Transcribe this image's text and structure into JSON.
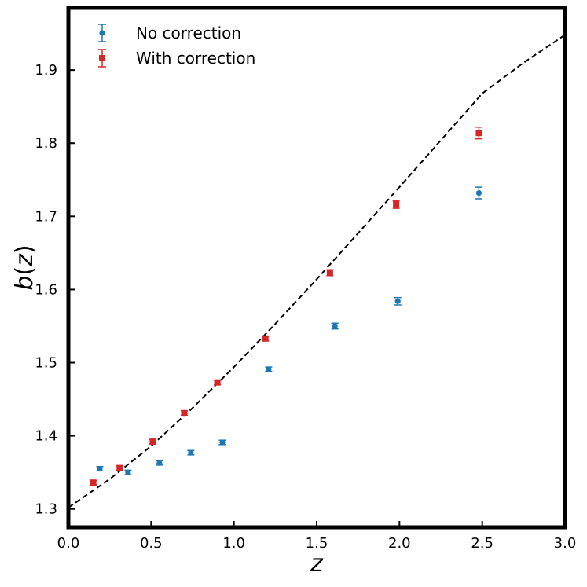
{
  "chart_data": {
    "type": "scatter",
    "title": "",
    "xlabel": "z",
    "ylabel_parts": [
      "b(",
      "z",
      ")"
    ],
    "xlim": [
      0.0,
      3.0
    ],
    "ylim": [
      1.275,
      1.985
    ],
    "xticks": [
      0.0,
      0.5,
      1.0,
      1.5,
      2.0,
      2.5,
      3.0
    ],
    "xtick_labels": [
      "0.0",
      "0.5",
      "1.0",
      "1.5",
      "2.0",
      "2.5",
      "3.0"
    ],
    "yticks": [
      1.3,
      1.4,
      1.5,
      1.6,
      1.7,
      1.8,
      1.9
    ],
    "ytick_labels": [
      "1.3",
      "1.4",
      "1.5",
      "1.6",
      "1.7",
      "1.8",
      "1.9"
    ],
    "grid": false,
    "legend_position": "top-left",
    "series": [
      {
        "name": "No correction",
        "marker": "circle",
        "color": "#1f77b4",
        "points": [
          {
            "x": 0.19,
            "y": 1.355,
            "err": 0.003
          },
          {
            "x": 0.36,
            "y": 1.35,
            "err": 0.003
          },
          {
            "x": 0.55,
            "y": 1.363,
            "err": 0.003
          },
          {
            "x": 0.74,
            "y": 1.377,
            "err": 0.003
          },
          {
            "x": 0.93,
            "y": 1.391,
            "err": 0.003
          },
          {
            "x": 1.21,
            "y": 1.491,
            "err": 0.003
          },
          {
            "x": 1.61,
            "y": 1.55,
            "err": 0.004
          },
          {
            "x": 1.99,
            "y": 1.584,
            "err": 0.005
          },
          {
            "x": 2.48,
            "y": 1.732,
            "err": 0.008
          }
        ]
      },
      {
        "name": "With correction",
        "marker": "square",
        "color": "#d62728",
        "points": [
          {
            "x": 0.15,
            "y": 1.336,
            "err": 0.003
          },
          {
            "x": 0.31,
            "y": 1.356,
            "err": 0.003
          },
          {
            "x": 0.51,
            "y": 1.392,
            "err": 0.003
          },
          {
            "x": 0.7,
            "y": 1.431,
            "err": 0.003
          },
          {
            "x": 0.9,
            "y": 1.473,
            "err": 0.003
          },
          {
            "x": 1.19,
            "y": 1.533,
            "err": 0.003
          },
          {
            "x": 1.58,
            "y": 1.623,
            "err": 0.004
          },
          {
            "x": 1.98,
            "y": 1.716,
            "err": 0.005
          },
          {
            "x": 2.48,
            "y": 1.814,
            "err": 0.008
          }
        ]
      }
    ],
    "reference_curve": {
      "style": "dashed",
      "color": "#000000",
      "points": [
        [
          0.0,
          1.302
        ],
        [
          0.25,
          1.341
        ],
        [
          0.5,
          1.386
        ],
        [
          0.75,
          1.438
        ],
        [
          1.0,
          1.494
        ],
        [
          1.25,
          1.553
        ],
        [
          1.5,
          1.614
        ],
        [
          1.75,
          1.677
        ],
        [
          2.0,
          1.74
        ],
        [
          2.25,
          1.804
        ],
        [
          2.5,
          1.868
        ],
        [
          2.75,
          1.91
        ],
        [
          3.0,
          1.948
        ]
      ]
    }
  }
}
